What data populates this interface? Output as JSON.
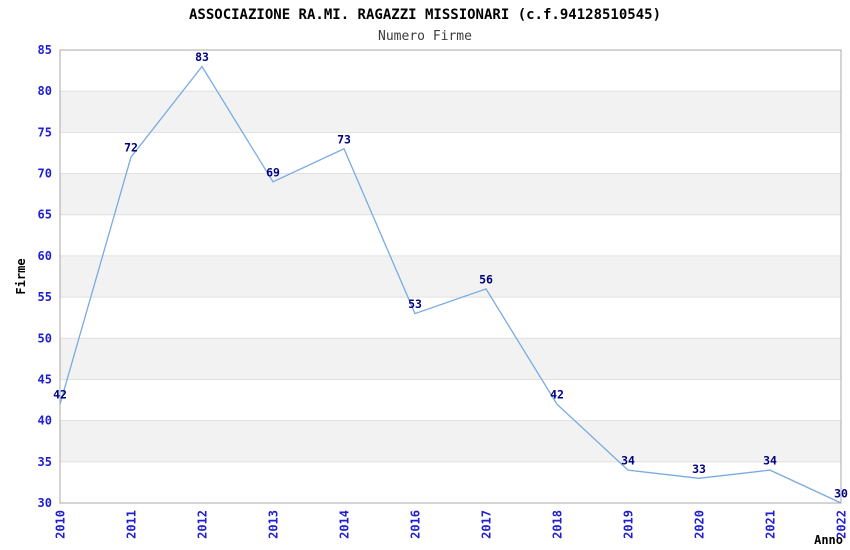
{
  "chart_data": {
    "type": "line",
    "title": "ASSOCIAZIONE RA.MI. RAGAZZI MISSIONARI (c.f.94128510545)",
    "subtitle": "Numero Firme",
    "xlabel": "Anno",
    "ylabel": "Firme",
    "categories": [
      "2010",
      "2011",
      "2012",
      "2013",
      "2014",
      "2016",
      "2017",
      "2018",
      "2019",
      "2020",
      "2021",
      "2022"
    ],
    "values": [
      42,
      72,
      83,
      69,
      73,
      53,
      56,
      42,
      34,
      33,
      34,
      30
    ],
    "series_name": "Numero Firme",
    "ylim": [
      30,
      85
    ],
    "ytick_step": 5,
    "yticks": [
      30,
      35,
      40,
      45,
      50,
      55,
      60,
      65,
      70,
      75,
      80,
      85
    ],
    "data_labels_visible": true,
    "legend": "none",
    "grid": "horizontal",
    "alternating_bands": true,
    "x_tick_rotation_degrees": -90,
    "colors": {
      "line": "#79abe2",
      "point_label": "#000080",
      "tick_label": "#1f1fcf",
      "band": "#f2f2f2",
      "gridline": "#e0e0e0",
      "plot_border": "#aaaaaa",
      "title": "#000000",
      "subtitle": "#3c3c3c",
      "background": "#ffffff"
    }
  }
}
